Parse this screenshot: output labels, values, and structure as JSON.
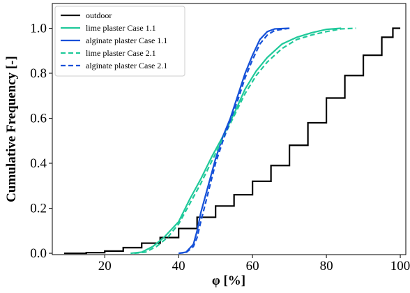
{
  "chart_data": {
    "type": "line",
    "xlabel": "φ [%]",
    "ylabel": "Cumulative Frequency [-]",
    "xlim": [
      5.8,
      101.5
    ],
    "ylim": [
      -0.006,
      1.11
    ],
    "xticks": [
      20,
      40,
      60,
      80,
      100
    ],
    "yticks": [
      {
        "value": 0,
        "label": "0.0"
      },
      {
        "value": 0.2,
        "label": "0.2"
      },
      {
        "value": 0.4,
        "label": "0.4"
      },
      {
        "value": 0.6,
        "label": "0.6"
      },
      {
        "value": 0.8,
        "label": "0.8"
      },
      {
        "value": 1.0,
        "label": "1.0"
      }
    ],
    "legend": "upper left",
    "series": [
      {
        "name": "outdoor",
        "color": "#000000",
        "dash": false,
        "steps": true,
        "x": [
          9,
          15,
          20,
          25,
          30,
          35,
          40,
          45,
          50,
          55,
          60,
          65,
          70,
          75,
          80,
          85,
          90,
          95,
          98,
          100
        ],
        "values": [
          0,
          0.003,
          0.01,
          0.025,
          0.045,
          0.07,
          0.11,
          0.16,
          0.21,
          0.26,
          0.32,
          0.39,
          0.48,
          0.58,
          0.69,
          0.79,
          0.88,
          0.96,
          1.0,
          1.0
        ]
      },
      {
        "name": "lime plaster Case 1.1",
        "color": "#1fc99a",
        "dash": false,
        "steps": false,
        "x": [
          27,
          30,
          33,
          36,
          40,
          43,
          46,
          49,
          52,
          55,
          58,
          61,
          64,
          68,
          72,
          76,
          80,
          84
        ],
        "values": [
          0,
          0.005,
          0.03,
          0.07,
          0.14,
          0.24,
          0.33,
          0.43,
          0.52,
          0.62,
          0.73,
          0.81,
          0.87,
          0.93,
          0.96,
          0.98,
          0.995,
          1.0
        ]
      },
      {
        "name": "alginate plaster Case 1.1",
        "color": "#1450d8",
        "dash": false,
        "steps": false,
        "x": [
          40,
          42,
          44,
          45,
          46,
          48,
          50,
          52,
          54,
          56,
          58,
          60,
          62,
          64,
          66,
          70
        ],
        "values": [
          0,
          0.005,
          0.04,
          0.1,
          0.18,
          0.3,
          0.42,
          0.52,
          0.6,
          0.7,
          0.8,
          0.88,
          0.95,
          0.985,
          0.997,
          1.0
        ]
      },
      {
        "name": "lime plaster Case 2.1",
        "color": "#1fc99a",
        "dash": true,
        "steps": false,
        "x": [
          28,
          31,
          34,
          37,
          40,
          43,
          46,
          49,
          52,
          55,
          58,
          61,
          64,
          68,
          72,
          76,
          80,
          84,
          88
        ],
        "values": [
          0,
          0.005,
          0.03,
          0.07,
          0.13,
          0.22,
          0.31,
          0.41,
          0.51,
          0.61,
          0.71,
          0.79,
          0.85,
          0.91,
          0.95,
          0.97,
          0.985,
          0.997,
          1.0
        ]
      },
      {
        "name": "alginate plaster Case 2.1",
        "color": "#1450d8",
        "dash": true,
        "steps": false,
        "x": [
          40,
          42,
          44,
          45,
          46,
          48,
          50,
          52,
          54,
          56,
          58,
          60,
          62,
          64,
          66,
          70
        ],
        "values": [
          0,
          0.003,
          0.03,
          0.07,
          0.14,
          0.27,
          0.4,
          0.5,
          0.59,
          0.68,
          0.78,
          0.86,
          0.93,
          0.97,
          0.99,
          1.0
        ]
      }
    ]
  }
}
